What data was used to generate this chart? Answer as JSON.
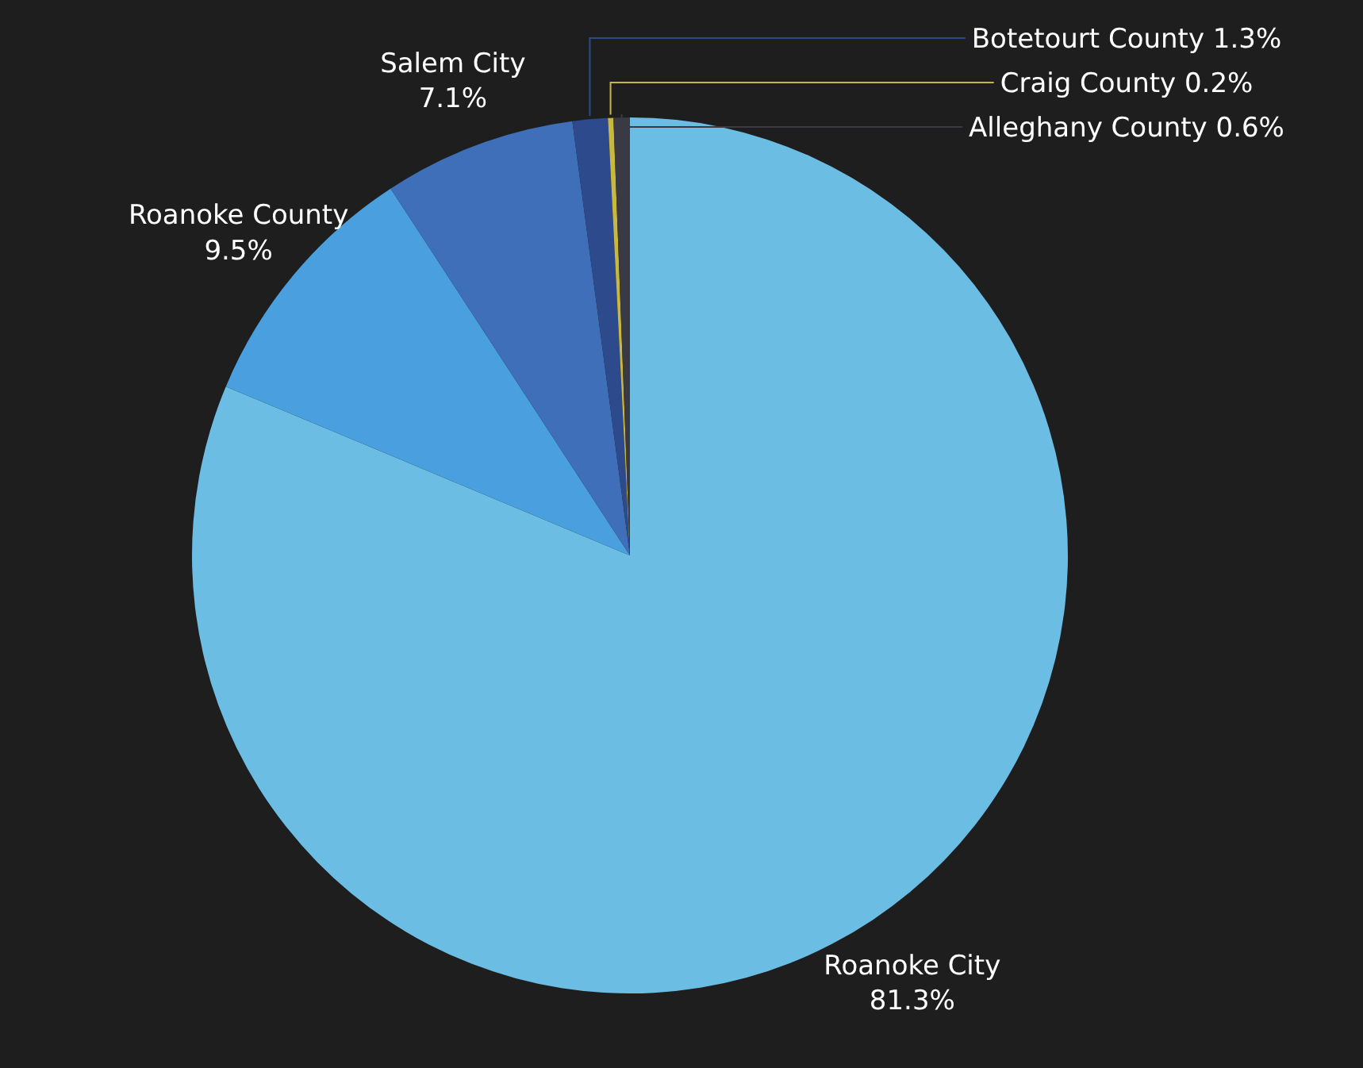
{
  "chart_data": {
    "type": "pie",
    "categories": [
      "Roanoke City",
      "Roanoke County",
      "Salem City",
      "Botetourt County",
      "Craig County",
      "Alleghany County"
    ],
    "values": [
      81.3,
      9.5,
      7.1,
      1.3,
      0.2,
      0.6
    ],
    "value_labels": [
      "81.3%",
      "9.5%",
      "7.1%",
      "1.3%",
      "0.2%",
      "0.6%"
    ],
    "colors": [
      "#6bbde3",
      "#4a9fde",
      "#3f6fb8",
      "#2d4a8c",
      "#c8b840",
      "#3a3a45"
    ],
    "legend": false
  }
}
